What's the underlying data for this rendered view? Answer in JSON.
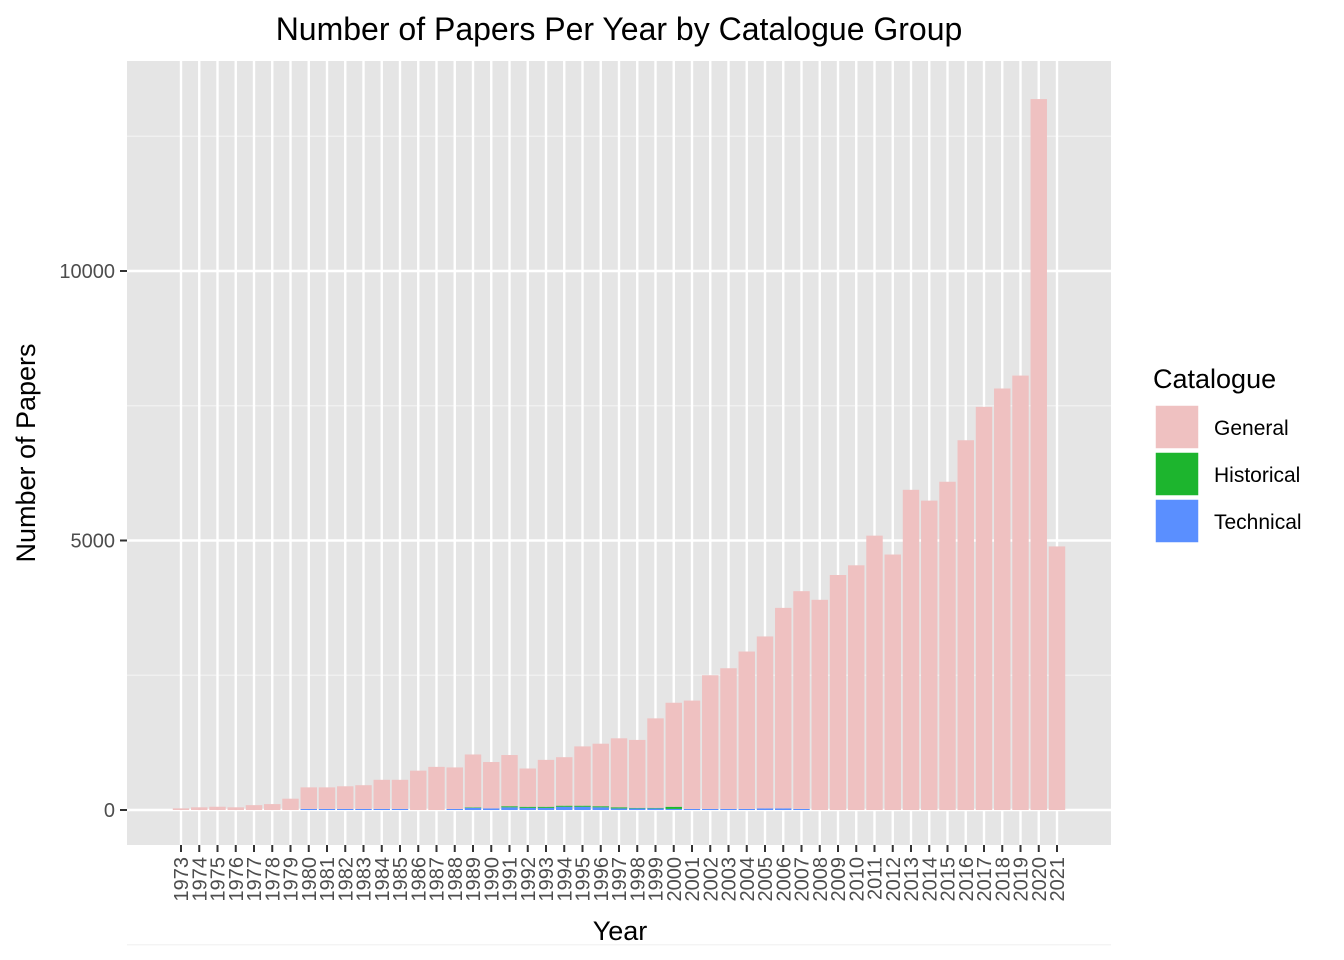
{
  "chart_data": {
    "type": "bar",
    "stacked": true,
    "title": "Number of Papers Per Year by Catalogue Group",
    "xlabel": "Year",
    "ylabel": "Number of Papers",
    "ylim": [
      -700,
      14000
    ],
    "yticks": [
      0,
      5000,
      10000
    ],
    "grid": true,
    "legend": {
      "title": "Catalogue",
      "position": "right"
    },
    "categories": [
      "1973",
      "1974",
      "1975",
      "1976",
      "1977",
      "1978",
      "1979",
      "1980",
      "1981",
      "1982",
      "1983",
      "1984",
      "1985",
      "1986",
      "1987",
      "1988",
      "1989",
      "1990",
      "1991",
      "1992",
      "1993",
      "1994",
      "1995",
      "1996",
      "1997",
      "1998",
      "1999",
      "2000",
      "2001",
      "2002",
      "2003",
      "2004",
      "2005",
      "2006",
      "2007",
      "2008",
      "2009",
      "2010",
      "2011",
      "2012",
      "2013",
      "2014",
      "2015",
      "2016",
      "2017",
      "2018",
      "2019",
      "2020",
      "2021"
    ],
    "series": [
      {
        "name": "Technical",
        "color": "#5A8FFF",
        "values": [
          0,
          0,
          0,
          0,
          0,
          0,
          0,
          20,
          20,
          20,
          20,
          20,
          20,
          0,
          0,
          20,
          40,
          30,
          50,
          40,
          40,
          60,
          60,
          50,
          30,
          30,
          30,
          20,
          20,
          20,
          20,
          20,
          30,
          30,
          20,
          0,
          0,
          0,
          0,
          0,
          0,
          0,
          0,
          0,
          0,
          0,
          0,
          0,
          0
        ]
      },
      {
        "name": "Historical",
        "color": "#1DB52E",
        "values": [
          0,
          0,
          0,
          0,
          0,
          0,
          0,
          0,
          0,
          0,
          0,
          0,
          0,
          0,
          0,
          0,
          10,
          0,
          20,
          20,
          20,
          20,
          20,
          20,
          20,
          10,
          10,
          40,
          0,
          0,
          0,
          0,
          0,
          0,
          0,
          0,
          0,
          0,
          0,
          0,
          0,
          0,
          0,
          0,
          0,
          0,
          0,
          0,
          0
        ]
      },
      {
        "name": "General",
        "color": "#EFC1C1",
        "values": [
          30,
          50,
          60,
          50,
          90,
          110,
          210,
          400,
          400,
          420,
          440,
          540,
          540,
          730,
          800,
          770,
          980,
          860,
          950,
          710,
          870,
          900,
          1100,
          1160,
          1280,
          1260,
          1660,
          1930,
          2010,
          2480,
          2610,
          2920,
          3190,
          3720,
          4040,
          3900,
          4360,
          4540,
          5090,
          4740,
          5940,
          5740,
          6090,
          6860,
          7480,
          7820,
          8060,
          13190,
          4890
        ]
      }
    ]
  }
}
